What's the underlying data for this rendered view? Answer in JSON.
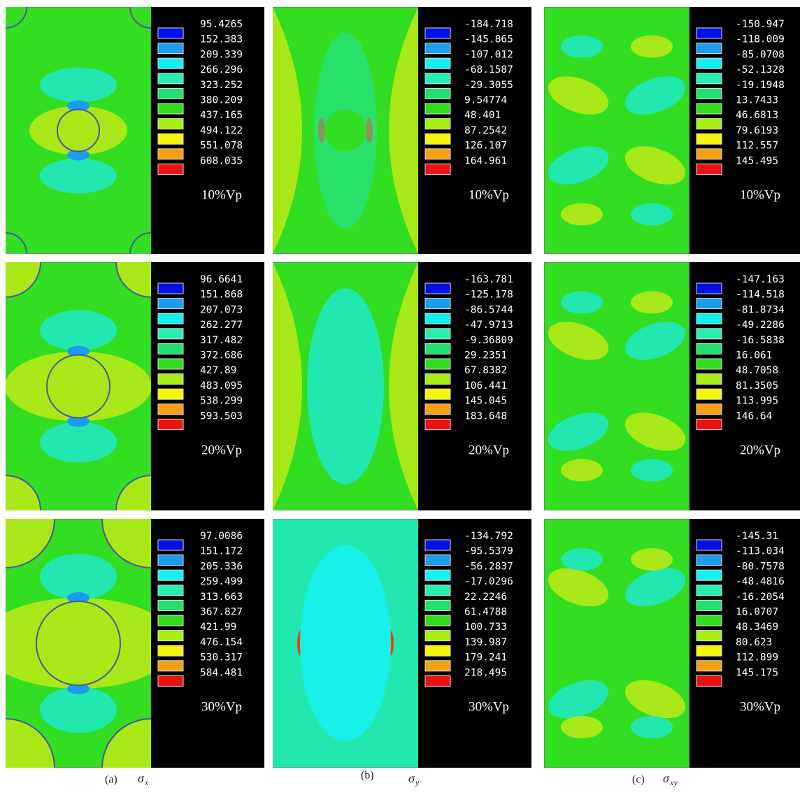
{
  "rows": [
    [
      {
        "legend": [
          "95.4265",
          "152.383",
          "209.339",
          "266.296",
          "323.252",
          "380.209",
          "437.165",
          "494.122",
          "551.078",
          "608.035"
        ],
        "load": "10%Vp"
      },
      {
        "legend": [
          "-184.718",
          "-145.865",
          "-107.012",
          "-68.1587",
          "-29.3055",
          "9.54774",
          "48.401",
          "87.2542",
          "126.107",
          "164.961"
        ],
        "load": "10%Vp"
      },
      {
        "legend": [
          "-150.947",
          "-118.009",
          "-85.0708",
          "-52.1328",
          "-19.1948",
          "13.7433",
          "46.6813",
          "79.6193",
          "112.557",
          "145.495"
        ],
        "load": "10%Vp"
      }
    ],
    [
      {
        "legend": [
          "96.6641",
          "151.868",
          "207.073",
          "262.277",
          "317.482",
          "372.686",
          "427.89",
          "483.095",
          "538.299",
          "593.503"
        ],
        "load": "20%Vp"
      },
      {
        "legend": [
          "-163.781",
          "-125.178",
          "-86.5744",
          "-47.9713",
          "-9.36809",
          "29.2351",
          "67.8382",
          "106.441",
          "145.045",
          "183.648"
        ],
        "load": "20%Vp"
      },
      {
        "legend": [
          "-147.163",
          "-114.518",
          "-81.8734",
          "-49.2286",
          "-16.5838",
          "16.061",
          "48.7058",
          "81.3505",
          "113.995",
          "146.64"
        ],
        "load": "20%Vp"
      }
    ],
    [
      {
        "legend": [
          "97.0086",
          "151.172",
          "205.336",
          "259.499",
          "313.663",
          "367.827",
          "421.99",
          "476.154",
          "530.317",
          "584.481"
        ],
        "load": "30%Vp"
      },
      {
        "legend": [
          "-134.792",
          "-95.5379",
          "-56.2837",
          "-17.0296",
          "22.2246",
          "61.4788",
          "100.733",
          "139.987",
          "179.241",
          "218.495"
        ],
        "load": "30%Vp"
      },
      {
        "legend": [
          "-145.31",
          "-113.034",
          "-80.7578",
          "-48.4816",
          "-16.2054",
          "16.0707",
          "48.3469",
          "80.623",
          "112.899",
          "145.175"
        ],
        "load": "30%Vp"
      }
    ]
  ],
  "captions": [
    {
      "label": "(a)",
      "symbol": "σ",
      "subscript": "x"
    },
    {
      "label": "(b)",
      "symbol": "σ",
      "subscript": "y"
    },
    {
      "label": "(c)",
      "symbol": "σ",
      "subscript": "xy"
    }
  ]
}
